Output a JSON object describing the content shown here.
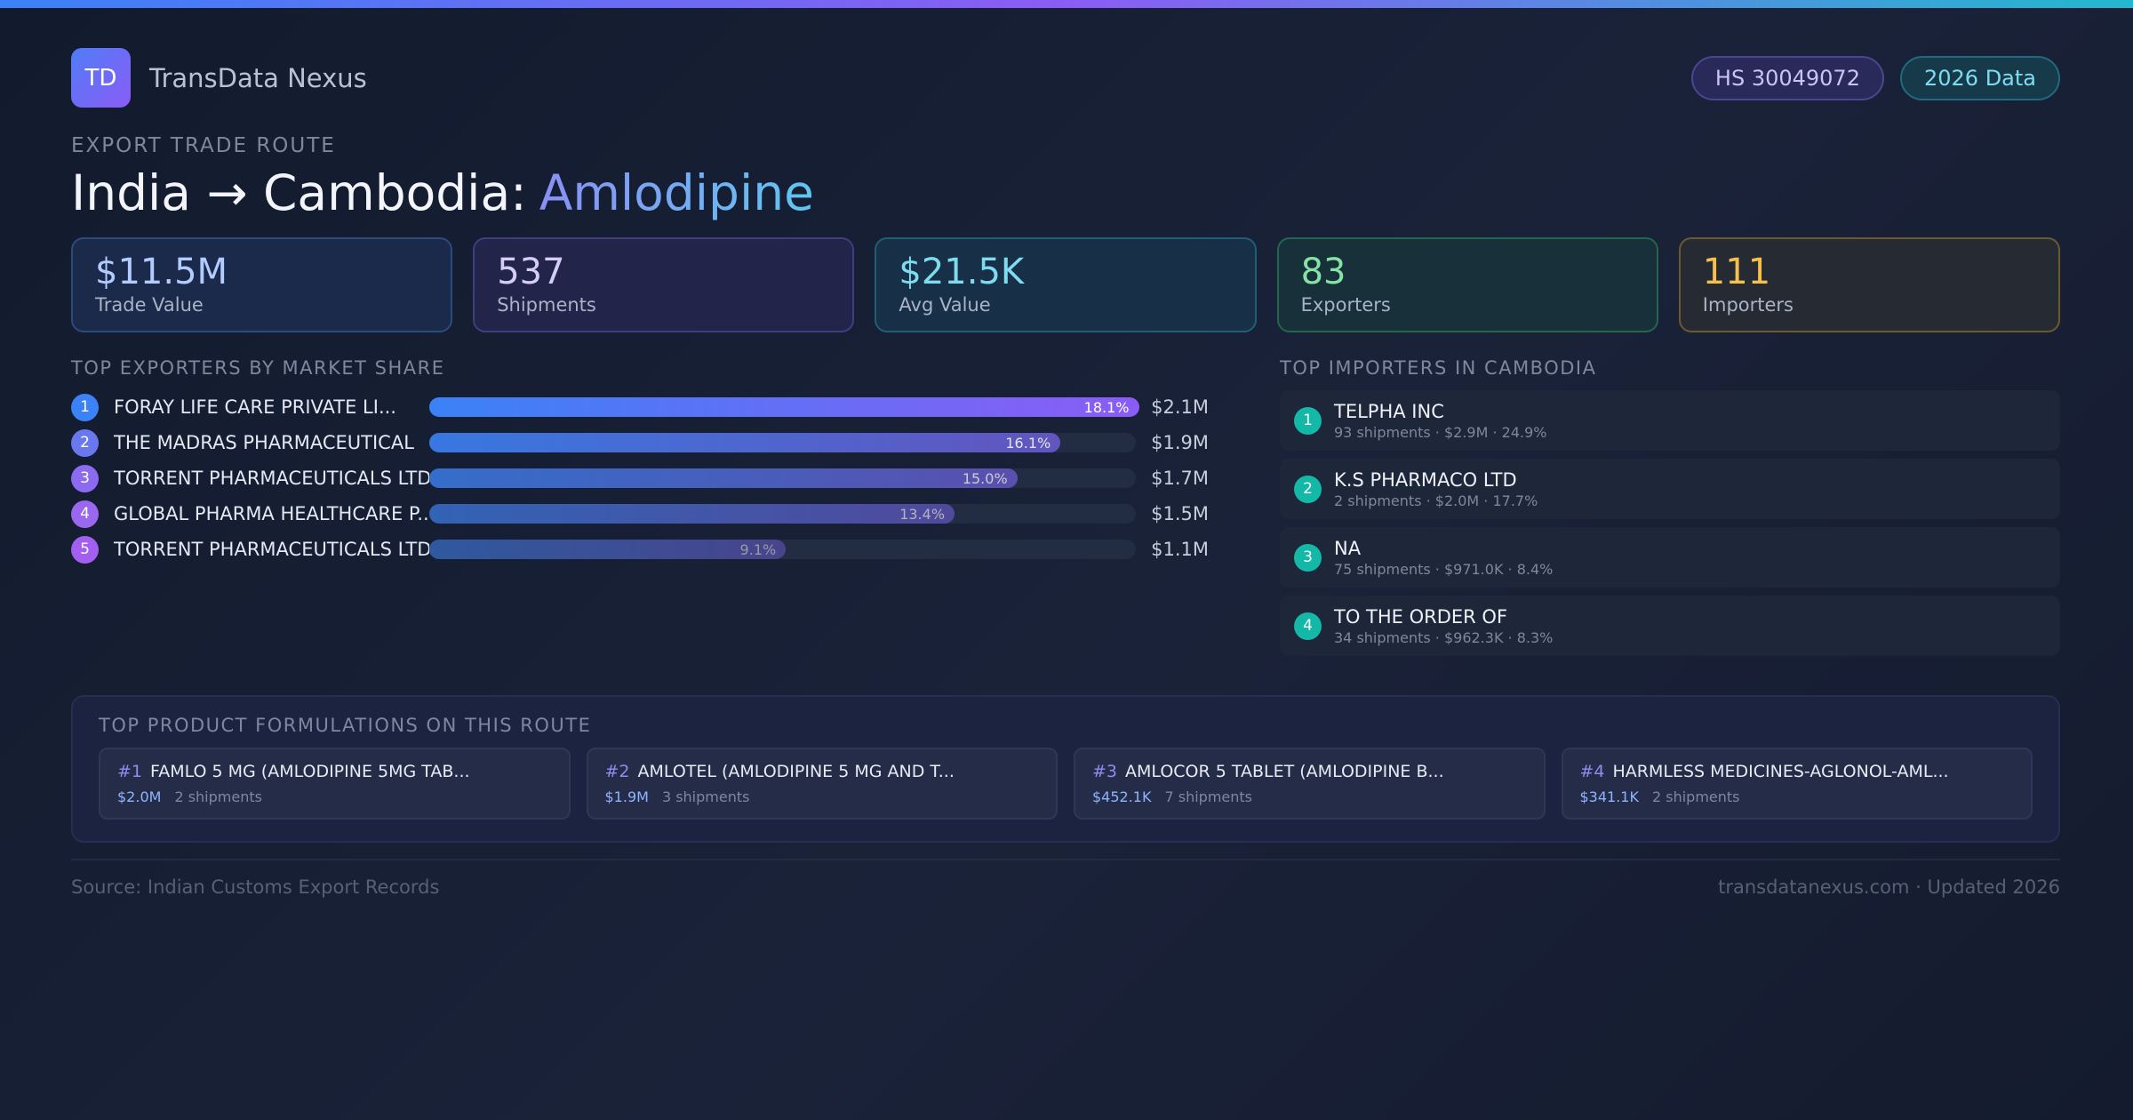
{
  "header": {
    "logo": "TD",
    "brand": "TransData Nexus",
    "badges": [
      "HS 30049072",
      "2026 Data"
    ]
  },
  "route": {
    "eyebrow": "EXPORT TRADE ROUTE",
    "title_prefix": "India → Cambodia:",
    "title_product": "Amlodipine"
  },
  "stats": [
    {
      "value": "$11.5M",
      "label": "Trade Value"
    },
    {
      "value": "537",
      "label": "Shipments"
    },
    {
      "value": "$21.5K",
      "label": "Avg Value"
    },
    {
      "value": "83",
      "label": "Exporters"
    },
    {
      "value": "111",
      "label": "Importers"
    }
  ],
  "exporters": {
    "title": "TOP EXPORTERS BY MARKET SHARE",
    "rows": [
      {
        "rank": 1,
        "name": "FORAY LIFE CARE PRIVATE LI...",
        "share": 18.1,
        "share_label": "18.1%",
        "value": "$2.1M"
      },
      {
        "rank": 2,
        "name": "THE MADRAS PHARMACEUTICAL",
        "share": 16.1,
        "share_label": "16.1%",
        "value": "$1.9M"
      },
      {
        "rank": 3,
        "name": "TORRENT PHARMACEUTICALS LTD",
        "share": 15.0,
        "share_label": "15.0%",
        "value": "$1.7M"
      },
      {
        "rank": 4,
        "name": "GLOBAL PHARMA HEALTHCARE P...",
        "share": 13.4,
        "share_label": "13.4%",
        "value": "$1.5M"
      },
      {
        "rank": 5,
        "name": "TORRENT PHARMACEUTICALS LTD",
        "share": 9.1,
        "share_label": "9.1%",
        "value": "$1.1M"
      }
    ]
  },
  "importers": {
    "title": "TOP IMPORTERS IN CAMBODIA",
    "rows": [
      {
        "rank": 1,
        "name": "TELPHA INC",
        "detail": "93 shipments · $2.9M · 24.9%"
      },
      {
        "rank": 2,
        "name": "K.S PHARMACO LTD",
        "detail": "2 shipments · $2.0M · 17.7%"
      },
      {
        "rank": 3,
        "name": "NA",
        "detail": "75 shipments · $971.0K · 8.4%"
      },
      {
        "rank": 4,
        "name": "TO THE ORDER OF",
        "detail": "34 shipments · $962.3K · 8.3%"
      }
    ]
  },
  "formulations": {
    "title": "TOP PRODUCT FORMULATIONS ON THIS ROUTE",
    "items": [
      {
        "rank": "#1",
        "name": "FAMLO 5 MG (AMLODIPINE 5MG TAB...",
        "value": "$2.0M",
        "shipments": "2 shipments"
      },
      {
        "rank": "#2",
        "name": "AMLOTEL (AMLODIPINE 5 MG AND T...",
        "value": "$1.9M",
        "shipments": "3 shipments"
      },
      {
        "rank": "#3",
        "name": "AMLOCOR 5 TABLET (AMLODIPINE B...",
        "value": "$452.1K",
        "shipments": "7 shipments"
      },
      {
        "rank": "#4",
        "name": "HARMLESS MEDICINES-AGLONOL-AML...",
        "value": "$341.1K",
        "shipments": "2 shipments"
      }
    ]
  },
  "footer": {
    "source": "Source: Indian Customs Export Records",
    "site": "transdatanexus.com · Updated 2026"
  }
}
